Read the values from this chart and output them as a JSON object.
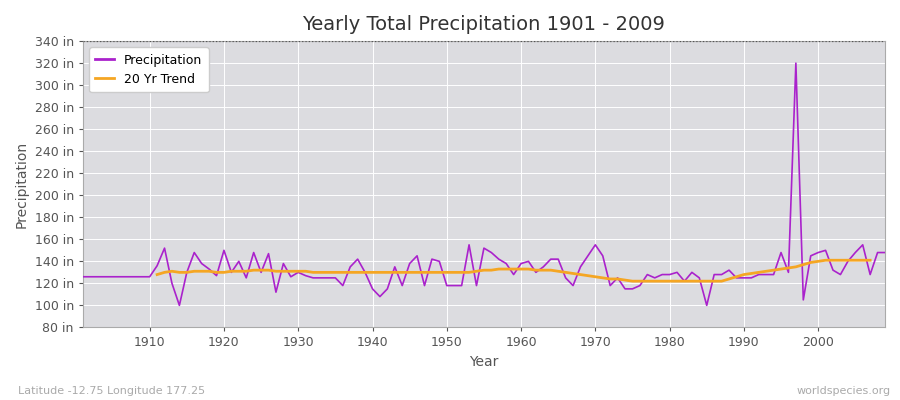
{
  "title": "Yearly Total Precipitation 1901 - 2009",
  "xlabel": "Year",
  "ylabel": "Precipitation",
  "subtitle_left": "Latitude -12.75 Longitude 177.25",
  "subtitle_right": "worldspecies.org",
  "years": [
    1901,
    1902,
    1903,
    1904,
    1905,
    1906,
    1907,
    1908,
    1909,
    1910,
    1911,
    1912,
    1913,
    1914,
    1915,
    1916,
    1917,
    1918,
    1919,
    1920,
    1921,
    1922,
    1923,
    1924,
    1925,
    1926,
    1927,
    1928,
    1929,
    1930,
    1931,
    1932,
    1933,
    1934,
    1935,
    1936,
    1937,
    1938,
    1939,
    1940,
    1941,
    1942,
    1943,
    1944,
    1945,
    1946,
    1947,
    1948,
    1949,
    1950,
    1951,
    1952,
    1953,
    1954,
    1955,
    1956,
    1957,
    1958,
    1959,
    1960,
    1961,
    1962,
    1963,
    1964,
    1965,
    1966,
    1967,
    1968,
    1969,
    1970,
    1971,
    1972,
    1973,
    1974,
    1975,
    1976,
    1977,
    1978,
    1979,
    1980,
    1981,
    1982,
    1983,
    1984,
    1985,
    1986,
    1987,
    1988,
    1989,
    1990,
    1991,
    1992,
    1993,
    1994,
    1995,
    1996,
    1997,
    1998,
    1999,
    2000,
    2001,
    2002,
    2003,
    2004,
    2005,
    2006,
    2007,
    2008,
    2009
  ],
  "precip": [
    126,
    126,
    126,
    126,
    126,
    126,
    126,
    126,
    126,
    126,
    136,
    152,
    120,
    100,
    130,
    148,
    138,
    133,
    127,
    150,
    130,
    140,
    125,
    148,
    130,
    147,
    112,
    138,
    126,
    130,
    127,
    125,
    125,
    125,
    125,
    118,
    135,
    142,
    130,
    115,
    108,
    115,
    135,
    118,
    138,
    145,
    118,
    142,
    140,
    118,
    118,
    118,
    155,
    118,
    152,
    148,
    142,
    138,
    128,
    138,
    140,
    130,
    135,
    142,
    142,
    125,
    118,
    135,
    145,
    155,
    145,
    118,
    125,
    115,
    115,
    118,
    128,
    125,
    128,
    128,
    130,
    122,
    130,
    125,
    100,
    128,
    128,
    132,
    125,
    125,
    125,
    128,
    128,
    128,
    148,
    130,
    320,
    105,
    145,
    148,
    150,
    132,
    128,
    140,
    148,
    155,
    128,
    148,
    148
  ],
  "trend": [
    null,
    null,
    null,
    null,
    null,
    null,
    null,
    null,
    null,
    null,
    128,
    130,
    131,
    130,
    130,
    131,
    131,
    131,
    130,
    130,
    131,
    131,
    131,
    132,
    132,
    132,
    131,
    131,
    131,
    131,
    131,
    130,
    130,
    130,
    130,
    130,
    130,
    130,
    130,
    130,
    130,
    130,
    130,
    130,
    130,
    130,
    130,
    130,
    130,
    130,
    130,
    130,
    130,
    131,
    132,
    132,
    133,
    133,
    133,
    133,
    133,
    132,
    132,
    132,
    131,
    130,
    129,
    128,
    127,
    126,
    125,
    124,
    124,
    123,
    122,
    122,
    122,
    122,
    122,
    122,
    122,
    122,
    122,
    122,
    122,
    122,
    122,
    124,
    126,
    128,
    129,
    130,
    131,
    132,
    133,
    134,
    135,
    137,
    139,
    140,
    141,
    141,
    141,
    141,
    141,
    141,
    141,
    null,
    null
  ],
  "ylim": [
    80,
    340
  ],
  "yticks": [
    80,
    100,
    120,
    140,
    160,
    180,
    200,
    220,
    240,
    260,
    280,
    300,
    320,
    340
  ],
  "xlim": [
    1901,
    2009
  ],
  "xticks": [
    1910,
    1920,
    1930,
    1940,
    1950,
    1960,
    1970,
    1980,
    1990,
    2000
  ],
  "precip_color": "#aa22cc",
  "trend_color": "#f5a623",
  "fig_bg_color": "#ffffff",
  "plot_bg_color": "#dcdce0",
  "grid_color": "#ffffff",
  "spine_color": "#aaaaaa",
  "tick_color": "#555555",
  "title_fontsize": 14,
  "label_fontsize": 10,
  "tick_fontsize": 9,
  "legend_fontsize": 9,
  "subtitle_fontsize": 8,
  "subtitle_color": "#aaaaaa",
  "precip_linewidth": 1.2,
  "trend_linewidth": 2.0,
  "top_dotted_y": 340
}
